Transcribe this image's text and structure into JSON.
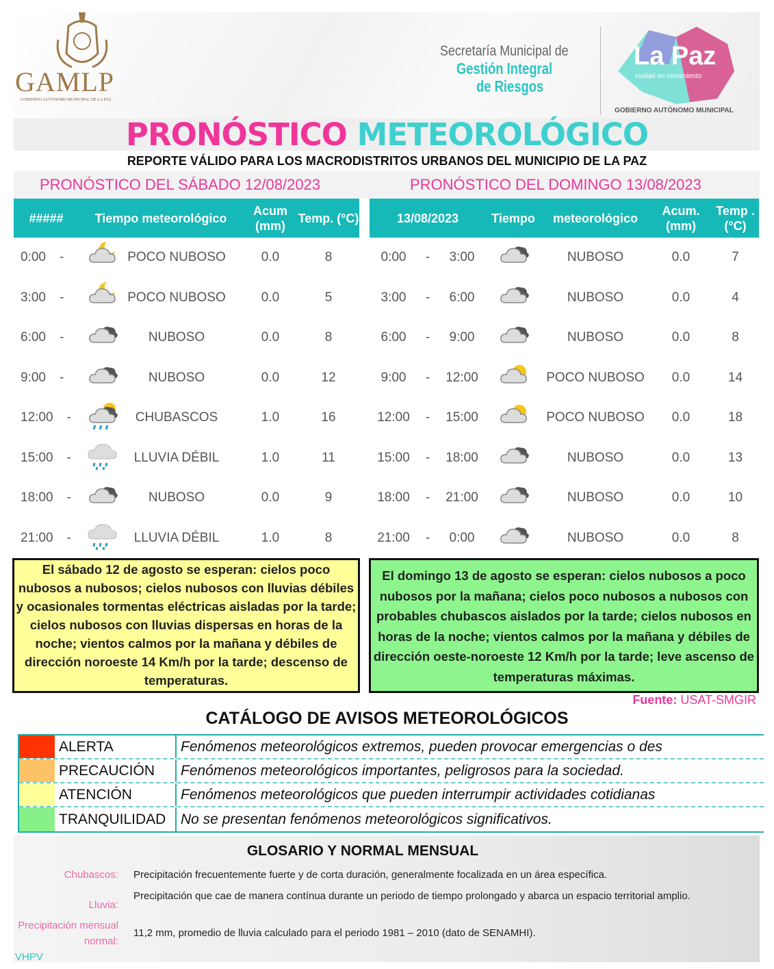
{
  "header": {
    "logo_left": "GAMLP",
    "logo_left_sub": "GOBIERNO AUTÓNOMO MUNICIPAL DE LA PAZ",
    "secretaria_line1": "Secretaría Municipal de",
    "secretaria_line2": "Gestión Integral",
    "secretaria_line3": "de Riesgos",
    "logo_right": "La Paz",
    "logo_right_tagline": "ciudad en movimiento",
    "logo_right_sub": "GOBIERNO AUTÓNOMO MUNICIPAL"
  },
  "title": {
    "part1": "PRONÓSTICO",
    "part2": "METEOROLÓGICO",
    "subtitle": "REPORTE VÁLIDO PARA LOS MACRODISTRITOS URBANOS DEL MUNICIPIO DE LA PAZ"
  },
  "colors": {
    "pink": "#e8389a",
    "teal": "#17b8b8",
    "yellow_box": "#ffff99",
    "green_box": "#8ef58e"
  },
  "day1": {
    "title": "PRONÓSTICO DEL SÁBADO 12/08/2023",
    "headers": [
      "#####",
      "Tiempo meteorológico",
      "Acum (mm)",
      "Temp. (°C)"
    ],
    "rows": [
      {
        "from": "0:00",
        "sep": "-",
        "icon": "partly-cloudy-night-icon",
        "weather": "POCO NUBOSO",
        "acum": "0.0",
        "temp": "8"
      },
      {
        "from": "3:00",
        "sep": "-",
        "icon": "partly-cloudy-night-icon",
        "weather": "POCO NUBOSO",
        "acum": "0.0",
        "temp": "5"
      },
      {
        "from": "6:00",
        "sep": "-",
        "icon": "cloudy-icon",
        "weather": "NUBOSO",
        "acum": "0.0",
        "temp": "8"
      },
      {
        "from": "9:00",
        "sep": "-",
        "icon": "cloudy-icon",
        "weather": "NUBOSO",
        "acum": "0.0",
        "temp": "12"
      },
      {
        "from": "12:00",
        "sep": "-",
        "icon": "showers-icon",
        "weather": "CHUBASCOS",
        "acum": "1.0",
        "temp": "16"
      },
      {
        "from": "15:00",
        "sep": "-",
        "icon": "light-rain-icon",
        "weather": "LLUVIA DÉBIL",
        "acum": "1.0",
        "temp": "11"
      },
      {
        "from": "18:00",
        "sep": "-",
        "icon": "cloudy-icon",
        "weather": "NUBOSO",
        "acum": "0.0",
        "temp": "9"
      },
      {
        "from": "21:00",
        "sep": "-",
        "icon": "light-rain-icon",
        "weather": "LLUVIA DÉBIL",
        "acum": "1.0",
        "temp": "8"
      }
    ],
    "summary": "El sábado 12 de agosto se esperan:  cielos poco nubosos a nubosos; cielos nubosos con lluvias débiles y ocasionales tormentas eléctricas aisladas por la tarde; cielos nubosos con lluvias dispersas en horas de la noche; vientos calmos por la mañana y débiles de dirección noroeste 14 Km/h por la tarde; descenso de temperaturas."
  },
  "day2": {
    "title": "PRONÓSTICO DEL DOMINGO 13/08/2023",
    "headers": [
      "13/08/2023",
      "Tiempo",
      "meteorológico",
      "Acum. (mm)",
      "Temp . (°C)"
    ],
    "rows": [
      {
        "from": "0:00",
        "sep": "-",
        "to": "3:00",
        "icon": "cloudy-icon",
        "weather": "NUBOSO",
        "acum": "0.0",
        "temp": "7"
      },
      {
        "from": "3:00",
        "sep": "-",
        "to": "6:00",
        "icon": "cloudy-icon",
        "weather": "NUBOSO",
        "acum": "0.0",
        "temp": "4"
      },
      {
        "from": "6:00",
        "sep": "-",
        "to": "9:00",
        "icon": "cloudy-icon",
        "weather": "NUBOSO",
        "acum": "0.0",
        "temp": "8"
      },
      {
        "from": "9:00",
        "sep": "-",
        "to": "12:00",
        "icon": "partly-cloudy-day-icon",
        "weather": "POCO NUBOSO",
        "acum": "0.0",
        "temp": "14"
      },
      {
        "from": "12:00",
        "sep": "-",
        "to": "15:00",
        "icon": "partly-cloudy-day-icon",
        "weather": "POCO NUBOSO",
        "acum": "0.0",
        "temp": "18"
      },
      {
        "from": "15:00",
        "sep": "-",
        "to": "18:00",
        "icon": "cloudy-icon",
        "weather": "NUBOSO",
        "acum": "0.0",
        "temp": "13"
      },
      {
        "from": "18:00",
        "sep": "-",
        "to": "21:00",
        "icon": "cloudy-icon",
        "weather": "NUBOSO",
        "acum": "0.0",
        "temp": "10"
      },
      {
        "from": "21:00",
        "sep": "-",
        "to": "0:00",
        "icon": "cloudy-icon",
        "weather": "NUBOSO",
        "acum": "0.0",
        "temp": "8"
      }
    ],
    "summary": "El domingo 13 de agosto se esperan:  cielos nubosos a poco nubosos por la mañana; cielos poco nubosos a nubosos con probables chubascos aislados por la tarde; cielos nubosos en horas de la noche; vientos calmos por la mañana y débiles de dirección oeste-noroeste 12 Km/h por la tarde; leve ascenso de temperaturas máximas."
  },
  "source": {
    "label": "Fuente:",
    "value": "USAT-SMGIR"
  },
  "catalog": {
    "title": "CATÁLOGO DE AVISOS METEOROLÓGICOS",
    "items": [
      {
        "label": "ALERTA",
        "color": "#ff3300",
        "desc": "Fenómenos meteorológicos extremos, pueden provocar emergencias o des"
      },
      {
        "label": "PRECAUCIÓN",
        "color": "#ffc266",
        "desc": "Fenómenos meteorológicos importantes, peligrosos para la sociedad."
      },
      {
        "label": "ATENCIÓN",
        "color": "#ffff99",
        "desc": "Fenómenos meteorológicos que pueden interrumpir actividades cotidianas"
      },
      {
        "label": "TRANQUILIDAD",
        "color": "#88f088",
        "desc": "No se presentan fenómenos meteorológicos significativos."
      }
    ]
  },
  "glossary": {
    "title": "GLOSARIO Y NORMAL MENSUAL",
    "items": [
      {
        "term": "Chubascos:",
        "def": "Precipitación frecuentemente fuerte y de corta duración, generalmente focalizada en un área específica."
      },
      {
        "term": "Lluvia:",
        "def": "Precipitación que cae de manera contínua durante un periodo de tiempo prolongado y abarca un espacio territorial amplio."
      },
      {
        "term": "Precipitación mensual normal:",
        "def": "11,2 mm, promedio de lluvia calculado para el periodo 1981 – 2010 (dato de SENAMHI)."
      }
    ]
  },
  "author": "VHPV"
}
